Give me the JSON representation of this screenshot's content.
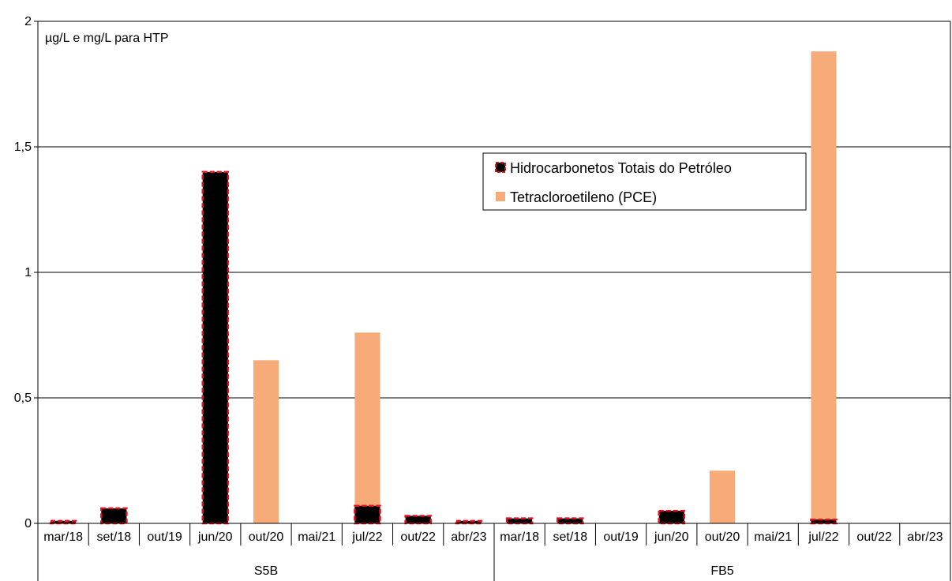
{
  "chart_data": {
    "type": "bar",
    "unit_note": "µg/L e mg/L para HTP",
    "y_ticks": [
      "0",
      "0,5",
      "1",
      "1,5",
      "2"
    ],
    "ylim": [
      0,
      2
    ],
    "grid": true,
    "legend_position": "top-right",
    "groups": [
      {
        "label": "S5B",
        "categories": [
          "mar/18",
          "set/18",
          "out/19",
          "jun/20",
          "out/20",
          "mai/21",
          "jul/22",
          "out/22",
          "abr/23"
        ]
      },
      {
        "label": "FB5",
        "categories": [
          "mar/18",
          "set/18",
          "out/19",
          "jun/20",
          "out/20",
          "mai/21",
          "jul/22",
          "out/22",
          "abr/23"
        ]
      }
    ],
    "series": [
      {
        "name": "Hidrocarbonetos Totais do Petróleo",
        "color": "#000000",
        "border_color": "#e8101f",
        "values": [
          0.01,
          0.06,
          0,
          1.4,
          0,
          0,
          0.07,
          0.03,
          0.01,
          0.02,
          0.02,
          0,
          0.05,
          0,
          0,
          0.015,
          0,
          0
        ]
      },
      {
        "name": "Tetracloroetileno (PCE)",
        "color": "#f7ab78",
        "values": [
          0,
          0,
          0,
          0,
          0.65,
          0,
          0.76,
          0,
          0,
          0,
          0,
          0,
          0,
          0.21,
          0,
          1.88,
          0,
          0
        ]
      }
    ]
  }
}
